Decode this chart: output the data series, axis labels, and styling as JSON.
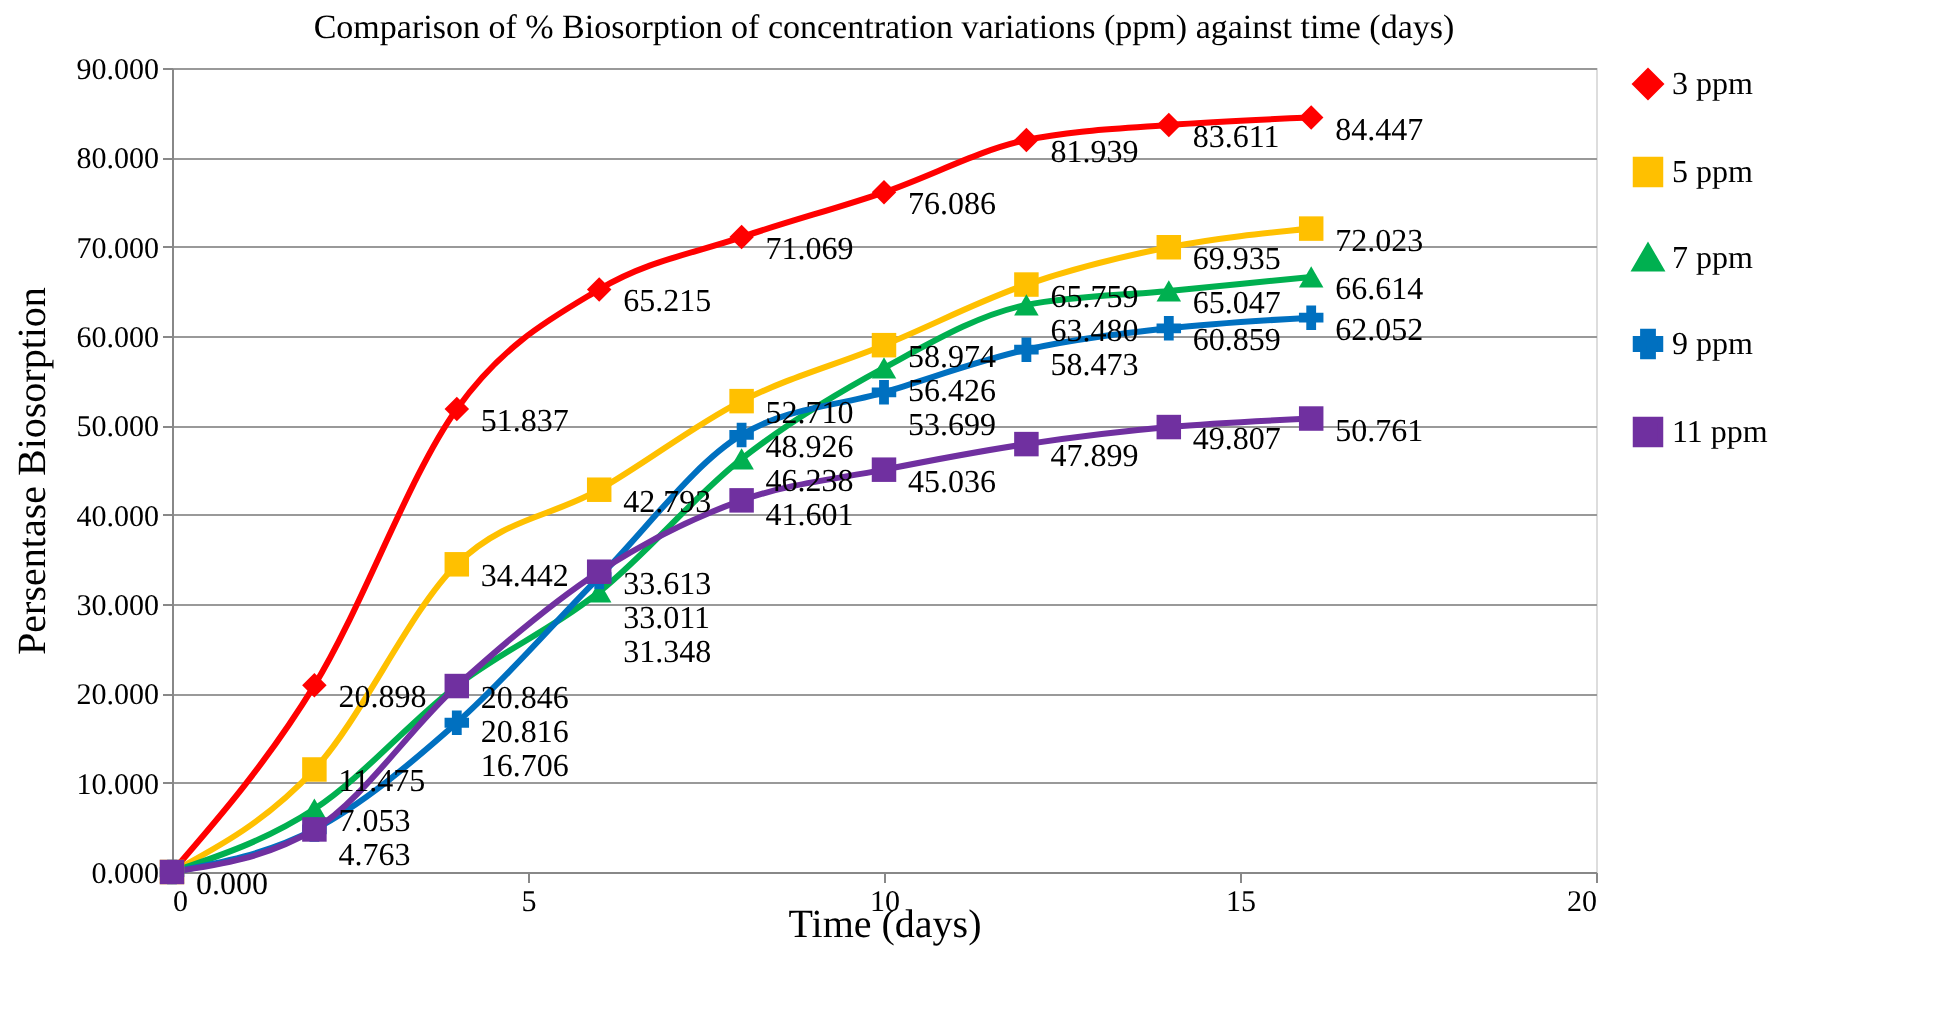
{
  "chart_data": {
    "type": "line",
    "title": "Comparison of % Biosorption of concentration variations (ppm) against time (days)",
    "xlabel": "Time (days)",
    "ylabel": "Persentase Biosorption",
    "x": [
      0,
      2,
      4,
      6,
      8,
      10,
      12,
      14,
      16
    ],
    "series": [
      {
        "name": "3 ppm",
        "color": "#ff0000",
        "marker": "diamond",
        "values": [
          0,
          20.898,
          51.837,
          65.215,
          71.069,
          76.086,
          81.939,
          83.611,
          84.447
        ],
        "value_labels": [
          "0.000",
          "20.898",
          "51.837",
          "65.215",
          "71.069",
          "76.086",
          "81.939",
          "83.611",
          "84.447"
        ]
      },
      {
        "name": "5 ppm",
        "color": "#ffc000",
        "marker": "square",
        "values": [
          0,
          11.475,
          34.442,
          42.793,
          52.71,
          58.974,
          65.759,
          69.935,
          72.023
        ],
        "value_labels": [
          null,
          "11.475",
          "34.442",
          "42.793",
          "52.710",
          "58.974",
          "65.759",
          "69.935",
          "72.023"
        ]
      },
      {
        "name": "7 ppm",
        "color": "#00b050",
        "marker": "triangle",
        "values": [
          0,
          7.053,
          20.846,
          31.348,
          46.238,
          56.426,
          63.48,
          65.047,
          66.614
        ],
        "value_labels": [
          null,
          "7.053",
          "20.846",
          "31.348",
          "46.238",
          "56.426",
          "63.480",
          "65.047",
          "66.614"
        ]
      },
      {
        "name": "9 ppm",
        "color": "#0070c0",
        "marker": "cross",
        "values": [
          0,
          4.763,
          16.706,
          33.011,
          48.926,
          53.699,
          58.473,
          60.859,
          62.052
        ],
        "value_labels": [
          null,
          null,
          "16.706",
          "33.011",
          "48.926",
          "53.699",
          "58.473",
          "60.859",
          "62.052"
        ]
      },
      {
        "name": "11 ppm",
        "color": "#7030a0",
        "marker": "square",
        "values": [
          0,
          4.763,
          20.816,
          33.613,
          41.601,
          45.036,
          47.899,
          49.807,
          50.761
        ],
        "value_labels": [
          null,
          "4.763",
          "20.816",
          "33.613",
          "41.601",
          "45.036",
          "47.899",
          "49.807",
          "50.761"
        ]
      }
    ],
    "xlim": [
      0,
      20
    ],
    "xticks": [
      0,
      5,
      10,
      15,
      20
    ],
    "ylim": [
      0,
      90
    ],
    "yticks": [
      {
        "value": 0,
        "label": "0.000"
      },
      {
        "value": 10,
        "label": "10.000"
      },
      {
        "value": 20,
        "label": "20.000"
      },
      {
        "value": 30,
        "label": "30.000"
      },
      {
        "value": 40,
        "label": "40.000"
      },
      {
        "value": 50,
        "label": "50.000"
      },
      {
        "value": 60,
        "label": "60.000"
      },
      {
        "value": 70,
        "label": "70.000"
      },
      {
        "value": 80,
        "label": "80.000"
      },
      {
        "value": 90,
        "label": "90.000"
      }
    ],
    "grid": "y",
    "legend": "right",
    "line_style": "solid"
  }
}
